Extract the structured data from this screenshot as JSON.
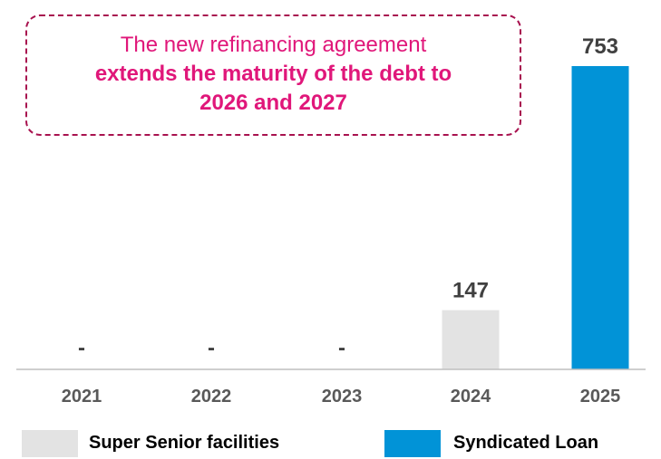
{
  "callout": {
    "line1": "The new refinancing agreement",
    "line2": "extends the maturity of the debt to",
    "line3": "2026 and 2027"
  },
  "legend": {
    "items": [
      {
        "label": "Super Senior facilities",
        "color": "#e3e3e3"
      },
      {
        "label": "Syndicated Loan",
        "color": "#0193d7"
      }
    ]
  },
  "chart_data": {
    "type": "bar",
    "categories": [
      "2021",
      "2022",
      "2023",
      "2024",
      "2025"
    ],
    "series": [
      {
        "name": "Super Senior facilities",
        "color": "#e3e3e3",
        "values": [
          0,
          0,
          0,
          147,
          0
        ]
      },
      {
        "name": "Syndicated Loan",
        "color": "#0193d7",
        "values": [
          0,
          0,
          0,
          0,
          753
        ]
      }
    ],
    "data_labels": [
      "-",
      "-",
      "-",
      "147",
      "753"
    ],
    "ylim": [
      0,
      753
    ],
    "legend_position": "bottom",
    "grid": false
  }
}
